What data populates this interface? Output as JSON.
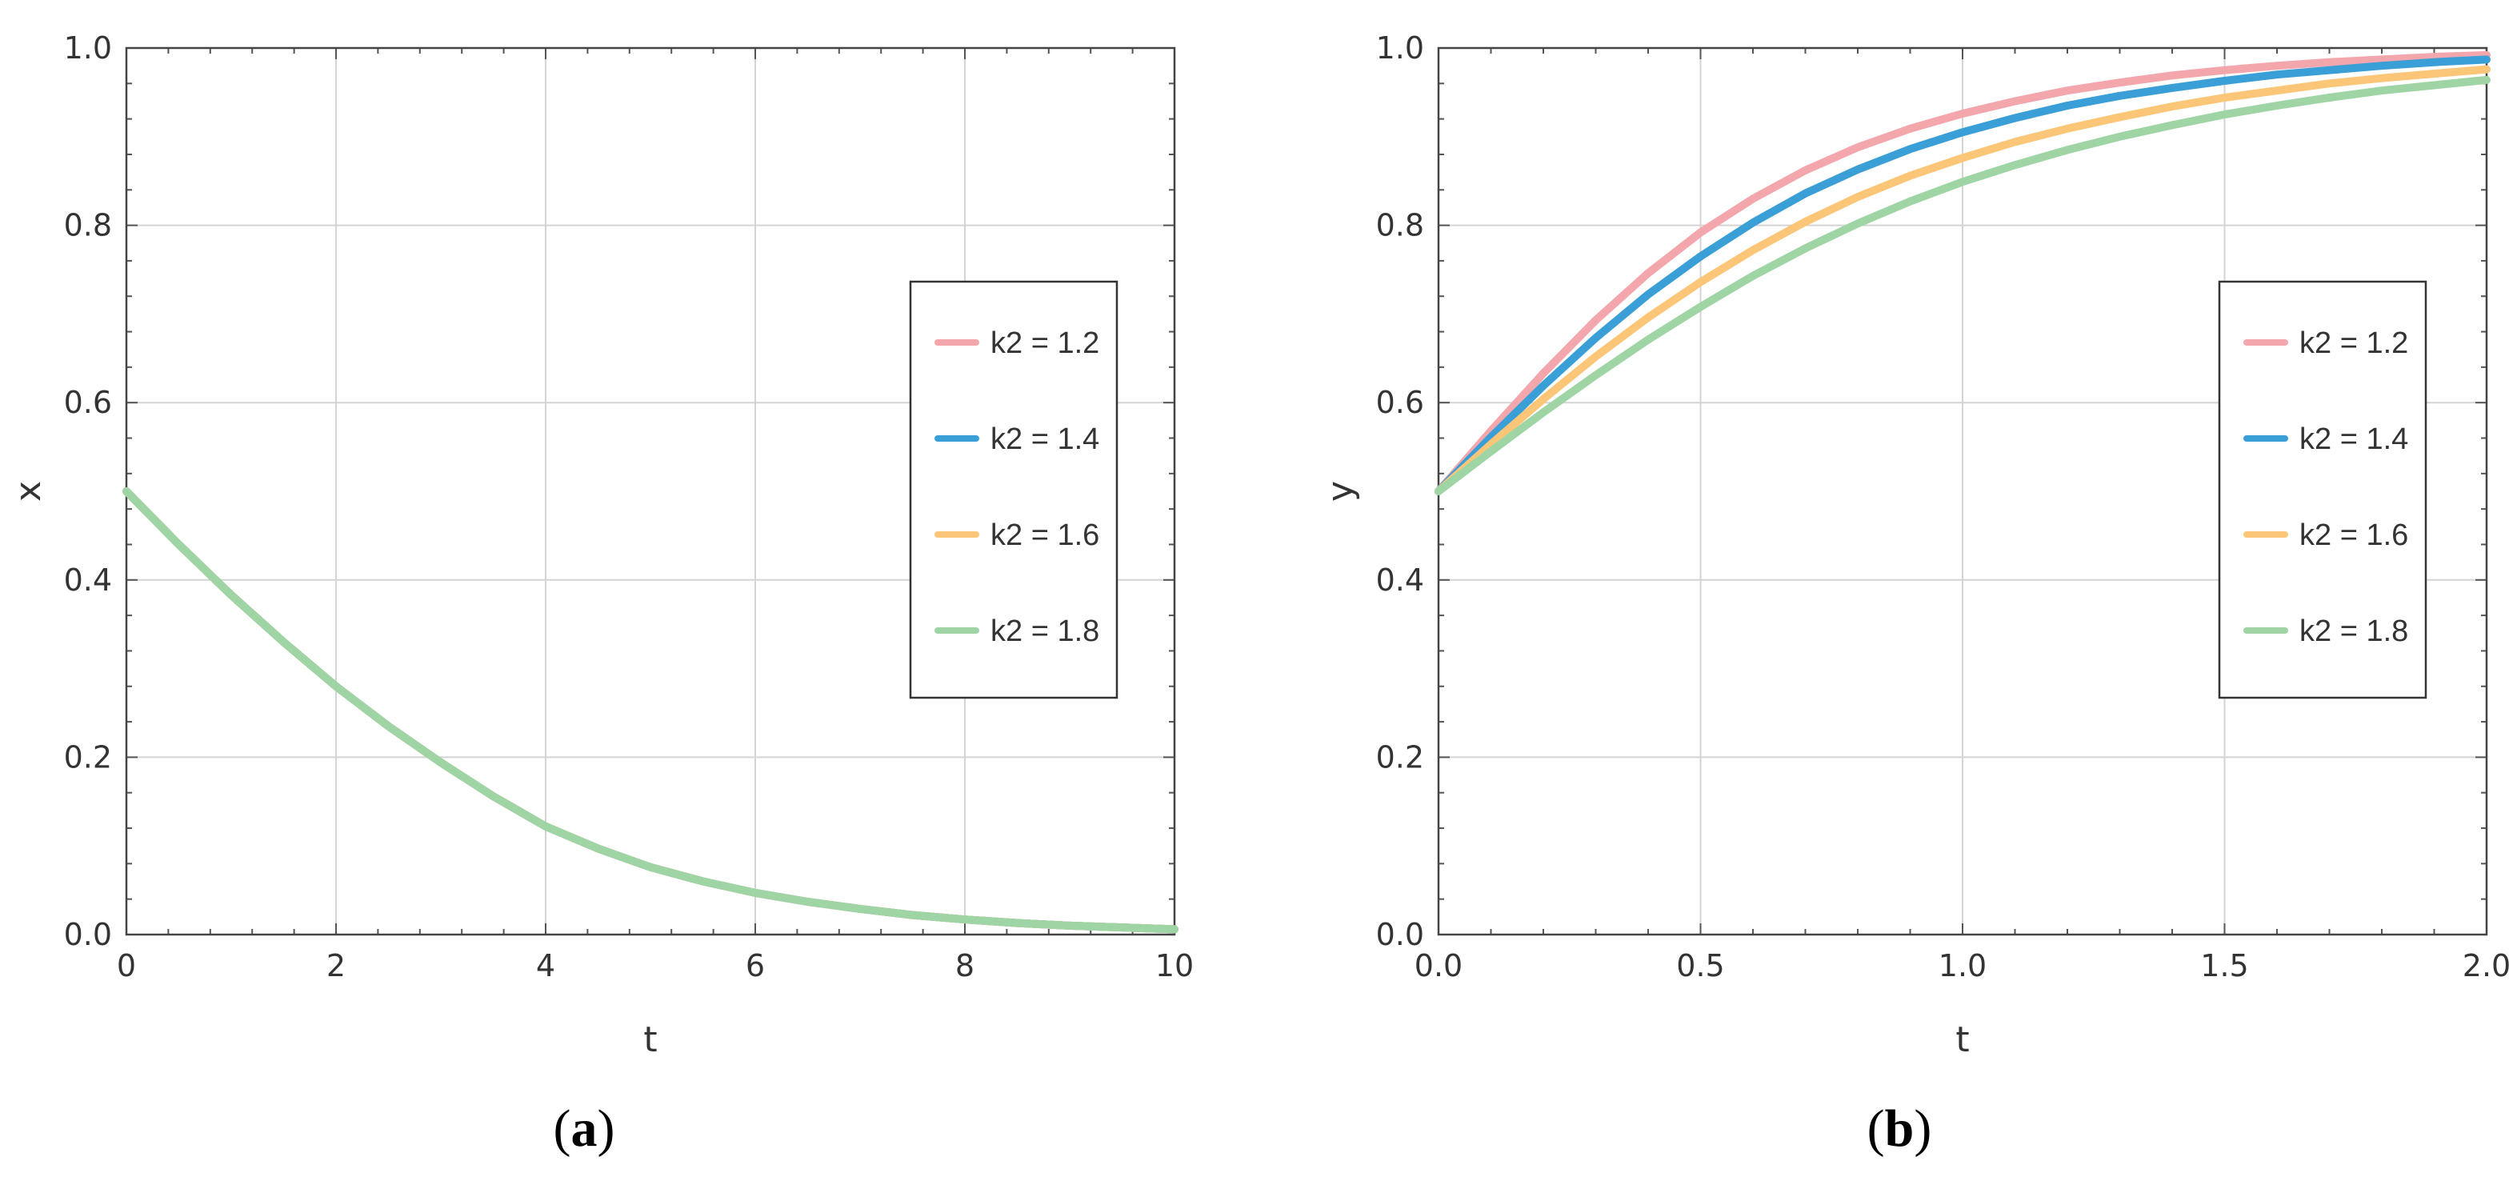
{
  "chart_data": [
    {
      "type": "line",
      "panel_label": "a",
      "xlabel": "t",
      "ylabel": "x",
      "xlim": [
        0,
        10
      ],
      "ylim": [
        0,
        1
      ],
      "x_ticks": [
        "0",
        "2",
        "4",
        "6",
        "8",
        "10"
      ],
      "y_ticks": [
        "0.0",
        "0.2",
        "0.4",
        "0.6",
        "0.8",
        "1.0"
      ],
      "grid": true,
      "legend_position": "right",
      "series": [
        {
          "name": "k2 = 1.2",
          "color": "#f4a6ad",
          "x": [
            0,
            0.5,
            1,
            1.5,
            2,
            2.5,
            3,
            3.5,
            4,
            4.5,
            5,
            5.5,
            6,
            6.5,
            7,
            7.5,
            8,
            8.5,
            9,
            9.5,
            10
          ],
          "y": [
            0.5,
            0.44,
            0.383,
            0.33,
            0.28,
            0.235,
            0.194,
            0.156,
            0.122,
            0.097,
            0.076,
            0.06,
            0.047,
            0.037,
            0.029,
            0.022,
            0.017,
            0.013,
            0.01,
            0.008,
            0.006
          ]
        },
        {
          "name": "k2 = 1.4",
          "color": "#3a9fd6",
          "x": [
            0,
            0.5,
            1,
            1.5,
            2,
            2.5,
            3,
            3.5,
            4,
            4.5,
            5,
            5.5,
            6,
            6.5,
            7,
            7.5,
            8,
            8.5,
            9,
            9.5,
            10
          ],
          "y": [
            0.5,
            0.44,
            0.383,
            0.33,
            0.28,
            0.235,
            0.194,
            0.156,
            0.122,
            0.097,
            0.076,
            0.06,
            0.047,
            0.037,
            0.029,
            0.022,
            0.017,
            0.013,
            0.01,
            0.008,
            0.006
          ]
        },
        {
          "name": "k2 = 1.6",
          "color": "#fcc678",
          "x": [
            0,
            0.5,
            1,
            1.5,
            2,
            2.5,
            3,
            3.5,
            4,
            4.5,
            5,
            5.5,
            6,
            6.5,
            7,
            7.5,
            8,
            8.5,
            9,
            9.5,
            10
          ],
          "y": [
            0.5,
            0.44,
            0.383,
            0.33,
            0.28,
            0.235,
            0.194,
            0.156,
            0.122,
            0.097,
            0.076,
            0.06,
            0.047,
            0.037,
            0.029,
            0.022,
            0.017,
            0.013,
            0.01,
            0.008,
            0.006
          ]
        },
        {
          "name": "k2 = 1.8",
          "color": "#9fd4a5",
          "x": [
            0,
            0.5,
            1,
            1.5,
            2,
            2.5,
            3,
            3.5,
            4,
            4.5,
            5,
            5.5,
            6,
            6.5,
            7,
            7.5,
            8,
            8.5,
            9,
            9.5,
            10
          ],
          "y": [
            0.5,
            0.44,
            0.383,
            0.33,
            0.28,
            0.235,
            0.194,
            0.156,
            0.122,
            0.097,
            0.076,
            0.06,
            0.047,
            0.037,
            0.029,
            0.022,
            0.017,
            0.013,
            0.01,
            0.008,
            0.006
          ]
        }
      ]
    },
    {
      "type": "line",
      "panel_label": "b",
      "xlabel": "t",
      "ylabel": "y",
      "xlim": [
        0,
        2
      ],
      "ylim": [
        0,
        1
      ],
      "x_ticks": [
        "0.0",
        "0.5",
        "1.0",
        "1.5",
        "2.0"
      ],
      "y_ticks": [
        "0.0",
        "0.2",
        "0.4",
        "0.6",
        "0.8",
        "1.0"
      ],
      "grid": true,
      "legend_position": "right",
      "series": [
        {
          "name": "k2 = 1.2",
          "color": "#f4a6ad",
          "x": [
            0,
            0.1,
            0.2,
            0.3,
            0.4,
            0.5,
            0.6,
            0.7,
            0.8,
            0.9,
            1.0,
            1.1,
            1.2,
            1.3,
            1.4,
            1.5,
            1.6,
            1.7,
            1.8,
            1.9,
            2.0
          ],
          "y": [
            0.5,
            0.568,
            0.633,
            0.693,
            0.746,
            0.792,
            0.83,
            0.862,
            0.888,
            0.909,
            0.926,
            0.94,
            0.952,
            0.961,
            0.969,
            0.975,
            0.98,
            0.984,
            0.987,
            0.99,
            0.992
          ]
        },
        {
          "name": "k2 = 1.4",
          "color": "#3a9fd6",
          "x": [
            0,
            0.1,
            0.2,
            0.3,
            0.4,
            0.5,
            0.6,
            0.7,
            0.8,
            0.9,
            1.0,
            1.1,
            1.2,
            1.3,
            1.4,
            1.5,
            1.6,
            1.7,
            1.8,
            1.9,
            2.0
          ],
          "y": [
            0.5,
            0.561,
            0.619,
            0.673,
            0.722,
            0.765,
            0.803,
            0.836,
            0.863,
            0.886,
            0.905,
            0.921,
            0.935,
            0.946,
            0.955,
            0.963,
            0.97,
            0.975,
            0.98,
            0.984,
            0.987
          ]
        },
        {
          "name": "k2 = 1.6",
          "color": "#fcc678",
          "x": [
            0,
            0.1,
            0.2,
            0.3,
            0.4,
            0.5,
            0.6,
            0.7,
            0.8,
            0.9,
            1.0,
            1.1,
            1.2,
            1.3,
            1.4,
            1.5,
            1.6,
            1.7,
            1.8,
            1.9,
            2.0
          ],
          "y": [
            0.5,
            0.553,
            0.604,
            0.652,
            0.696,
            0.736,
            0.772,
            0.804,
            0.832,
            0.856,
            0.876,
            0.894,
            0.909,
            0.922,
            0.934,
            0.944,
            0.952,
            0.96,
            0.966,
            0.971,
            0.976
          ]
        },
        {
          "name": "k2 = 1.8",
          "color": "#9fd4a5",
          "x": [
            0,
            0.1,
            0.2,
            0.3,
            0.4,
            0.5,
            0.6,
            0.7,
            0.8,
            0.9,
            1.0,
            1.1,
            1.2,
            1.3,
            1.4,
            1.5,
            1.6,
            1.7,
            1.8,
            1.9,
            2.0
          ],
          "y": [
            0.5,
            0.545,
            0.589,
            0.631,
            0.671,
            0.708,
            0.743,
            0.774,
            0.802,
            0.827,
            0.849,
            0.868,
            0.885,
            0.9,
            0.913,
            0.925,
            0.935,
            0.944,
            0.952,
            0.958,
            0.964
          ]
        }
      ]
    }
  ]
}
